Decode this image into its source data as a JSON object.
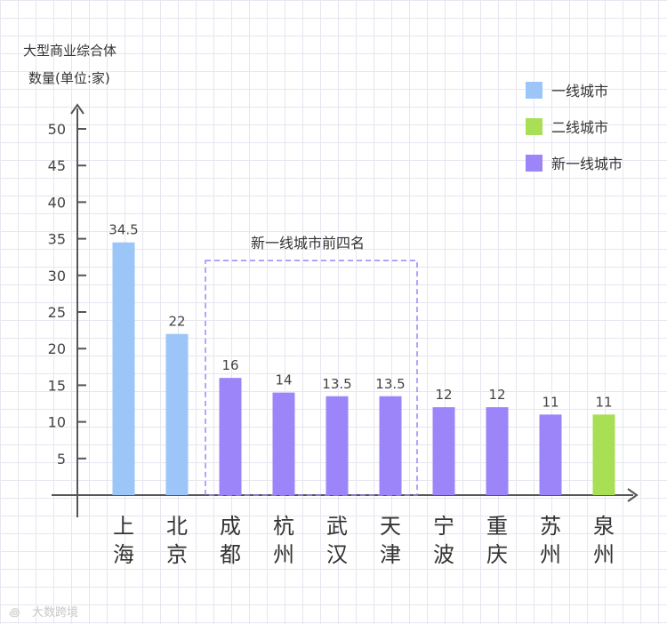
{
  "chart_data": {
    "type": "bar",
    "ylabel_lines": [
      "大型商业综合体",
      "数量(单位:家)"
    ],
    "ylim": [
      0,
      55
    ],
    "yticks": [
      5,
      10,
      15,
      20,
      25,
      30,
      35,
      40,
      45,
      50
    ],
    "categories": [
      "上海",
      "北京",
      "成都",
      "杭州",
      "武汉",
      "天津",
      "宁波",
      "重庆",
      "苏州",
      "泉州"
    ],
    "values": [
      34.5,
      22,
      16,
      14,
      13.5,
      13.5,
      12,
      12,
      11,
      11
    ],
    "value_labels": [
      "34.5",
      "22",
      "16",
      "14",
      "13.5",
      "13.5",
      "12",
      "12",
      "11",
      "11"
    ],
    "groups": [
      "一线城市",
      "一线城市",
      "新一线城市",
      "新一线城市",
      "新一线城市",
      "新一线城市",
      "新一线城市",
      "新一线城市",
      "新一线城市",
      "二线城市"
    ],
    "legend": [
      {
        "label": "一线城市",
        "color": "#9cc5f8"
      },
      {
        "label": "二线城市",
        "color": "#a8df54"
      },
      {
        "label": "新一线城市",
        "color": "#9c85f8"
      }
    ],
    "legend_position": "top-right",
    "annotation": {
      "text": "新一线城市前四名",
      "covers": [
        "成都",
        "杭州",
        "武汉",
        "天津"
      ]
    },
    "grid": true
  },
  "watermark": "大数跨境"
}
